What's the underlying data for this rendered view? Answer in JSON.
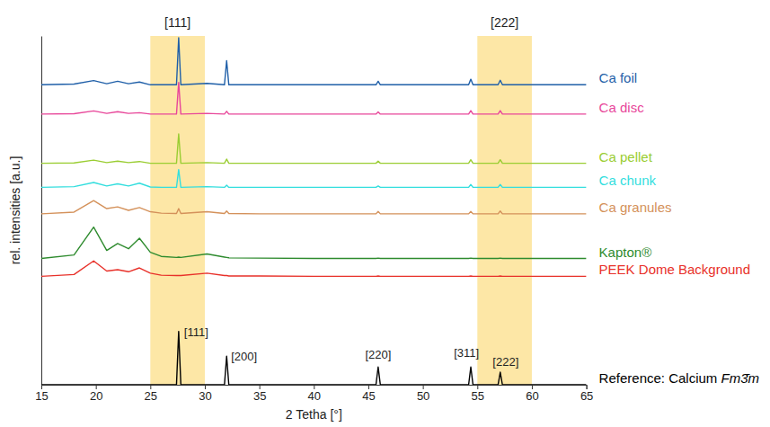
{
  "chart_data": {
    "type": "line",
    "x_label": "2 Tetha [°]",
    "y_label": "rel. intensities [a.u.]",
    "x": [
      15,
      18,
      19.8,
      21,
      22,
      23,
      24,
      25,
      26,
      27.4,
      27.6,
      27.8,
      30.2,
      31.8,
      32,
      32.2,
      35,
      40,
      45.7,
      45.9,
      46.1,
      50,
      54.2,
      54.4,
      54.6,
      56.9,
      57.1,
      57.3,
      60,
      65
    ],
    "xlim": [
      15,
      65
    ],
    "xticks": [
      15,
      20,
      25,
      30,
      35,
      40,
      45,
      50,
      55,
      60,
      65
    ],
    "ylim": [
      0,
      100
    ],
    "tick_labels": "x",
    "grid": false,
    "legend": "right",
    "series": [
      {
        "name": "Ca foil",
        "color": "#1f5fa8",
        "values": [
          86.0,
          86.2,
          87.2,
          86.3,
          87.0,
          86.3,
          86.8,
          86.0,
          86.0,
          86.0,
          99.5,
          86.0,
          86.4,
          86.0,
          92.9,
          86.0,
          86.0,
          86.0,
          86.0,
          87.0,
          86.0,
          86.0,
          86.0,
          87.6,
          86.0,
          86.0,
          87.3,
          86.0,
          86.0,
          86.0
        ]
      },
      {
        "name": "Ca disc",
        "color": "#e8479a",
        "values": [
          77.6,
          77.7,
          78.5,
          77.8,
          78.3,
          77.8,
          78.0,
          77.6,
          77.6,
          77.6,
          86.7,
          77.6,
          77.8,
          77.6,
          78.4,
          77.6,
          77.6,
          77.6,
          77.6,
          78.2,
          77.6,
          77.6,
          77.6,
          78.6,
          77.6,
          77.6,
          78.6,
          77.6,
          77.6,
          77.6
        ]
      },
      {
        "name": "Ca pellet",
        "color": "#9acd32",
        "values": [
          63.5,
          63.6,
          64.4,
          63.7,
          64.1,
          63.7,
          64.0,
          63.5,
          63.5,
          63.5,
          71.9,
          63.5,
          63.7,
          63.5,
          64.7,
          63.5,
          63.5,
          63.5,
          63.5,
          64.1,
          63.5,
          63.5,
          63.5,
          64.5,
          63.5,
          63.5,
          64.5,
          63.5,
          63.5,
          63.5
        ]
      },
      {
        "name": "Ca chunk",
        "color": "#33dede",
        "values": [
          56.6,
          56.8,
          58.0,
          57.0,
          57.6,
          57.0,
          57.8,
          56.7,
          56.6,
          56.6,
          61.7,
          56.6,
          56.8,
          56.6,
          57.2,
          56.6,
          56.6,
          56.6,
          56.6,
          57.0,
          56.6,
          56.6,
          56.6,
          57.4,
          56.6,
          56.6,
          57.4,
          56.6,
          56.6,
          56.6
        ]
      },
      {
        "name": "Ca granules",
        "color": "#d4915a",
        "values": [
          49.0,
          49.5,
          52.8,
          50.5,
          51.0,
          50.0,
          50.8,
          49.6,
          49.2,
          49.1,
          50.5,
          49.1,
          49.6,
          49.1,
          49.8,
          49.1,
          49.0,
          49.0,
          49.0,
          49.7,
          49.0,
          49.0,
          49.0,
          49.7,
          49.0,
          49.0,
          49.8,
          49.0,
          49.0,
          49.0
        ]
      },
      {
        "name": "Kapton®",
        "color": "#2e8b2e",
        "values": [
          36.2,
          37.2,
          45.2,
          38.5,
          40.5,
          39.0,
          42.0,
          38.0,
          36.8,
          36.5,
          36.6,
          36.5,
          37.5,
          36.6,
          36.5,
          36.4,
          36.3,
          36.2,
          36.2,
          36.3,
          36.2,
          36.2,
          36.2,
          36.3,
          36.2,
          36.2,
          36.3,
          36.2,
          36.2,
          36.2
        ]
      },
      {
        "name": "PEEK Dome Background",
        "color": "#e8312a",
        "values": [
          31.1,
          31.6,
          35.5,
          32.6,
          33.0,
          32.4,
          33.5,
          32.0,
          31.4,
          31.3,
          31.3,
          31.3,
          32.0,
          31.3,
          31.3,
          31.2,
          31.2,
          31.1,
          31.1,
          31.2,
          31.1,
          31.1,
          31.1,
          31.2,
          31.1,
          31.1,
          31.2,
          31.1,
          31.1,
          31.1
        ]
      },
      {
        "name": "Reference: Calcium Fm3̄m",
        "color": "#000000",
        "values": [
          0,
          0,
          0,
          0,
          0,
          0,
          0,
          0,
          0,
          0,
          15.3,
          0,
          0,
          0,
          8.2,
          0,
          0,
          0,
          0,
          5.1,
          0,
          0,
          0,
          5.1,
          0,
          0,
          3.6,
          0,
          0,
          0
        ]
      }
    ],
    "bands": [
      {
        "label": "[111]",
        "x0": 25,
        "x1": 30,
        "color": "#fde7a6"
      },
      {
        "label": "[222]",
        "x0": 55,
        "x1": 60,
        "color": "#fde7a6"
      }
    ],
    "annotations": [
      {
        "text": "[111]",
        "x": 29.2,
        "y": 14
      },
      {
        "text": "[200]",
        "x": 33.6,
        "y": 7
      },
      {
        "text": "[220]",
        "x": 45.9,
        "y": 7.5
      },
      {
        "text": "[311]",
        "x": 54.0,
        "y": 8
      },
      {
        "text": "[222]",
        "x": 57.6,
        "y": 5.5
      }
    ]
  }
}
